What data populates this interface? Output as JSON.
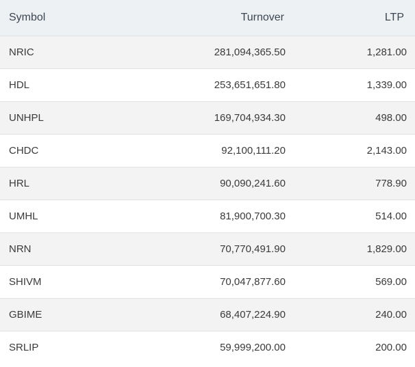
{
  "table": {
    "headers": {
      "symbol": "Symbol",
      "turnover": "Turnover",
      "ltp": "LTP"
    },
    "rows": [
      {
        "symbol": "NRIC",
        "turnover": "281,094,365.50",
        "ltp": "1,281.00"
      },
      {
        "symbol": "HDL",
        "turnover": "253,651,651.80",
        "ltp": "1,339.00"
      },
      {
        "symbol": "UNHPL",
        "turnover": "169,704,934.30",
        "ltp": "498.00"
      },
      {
        "symbol": "CHDC",
        "turnover": "92,100,111.20",
        "ltp": "2,143.00"
      },
      {
        "symbol": "HRL",
        "turnover": "90,090,241.60",
        "ltp": "778.90"
      },
      {
        "symbol": "UMHL",
        "turnover": "81,900,700.30",
        "ltp": "514.00"
      },
      {
        "symbol": "NRN",
        "turnover": "70,770,491.90",
        "ltp": "1,829.00"
      },
      {
        "symbol": "SHIVM",
        "turnover": "70,047,877.60",
        "ltp": "569.00"
      },
      {
        "symbol": "GBIME",
        "turnover": "68,407,224.90",
        "ltp": "240.00"
      },
      {
        "symbol": "SRLIP",
        "turnover": "59,999,200.00",
        "ltp": "200.00"
      }
    ]
  }
}
